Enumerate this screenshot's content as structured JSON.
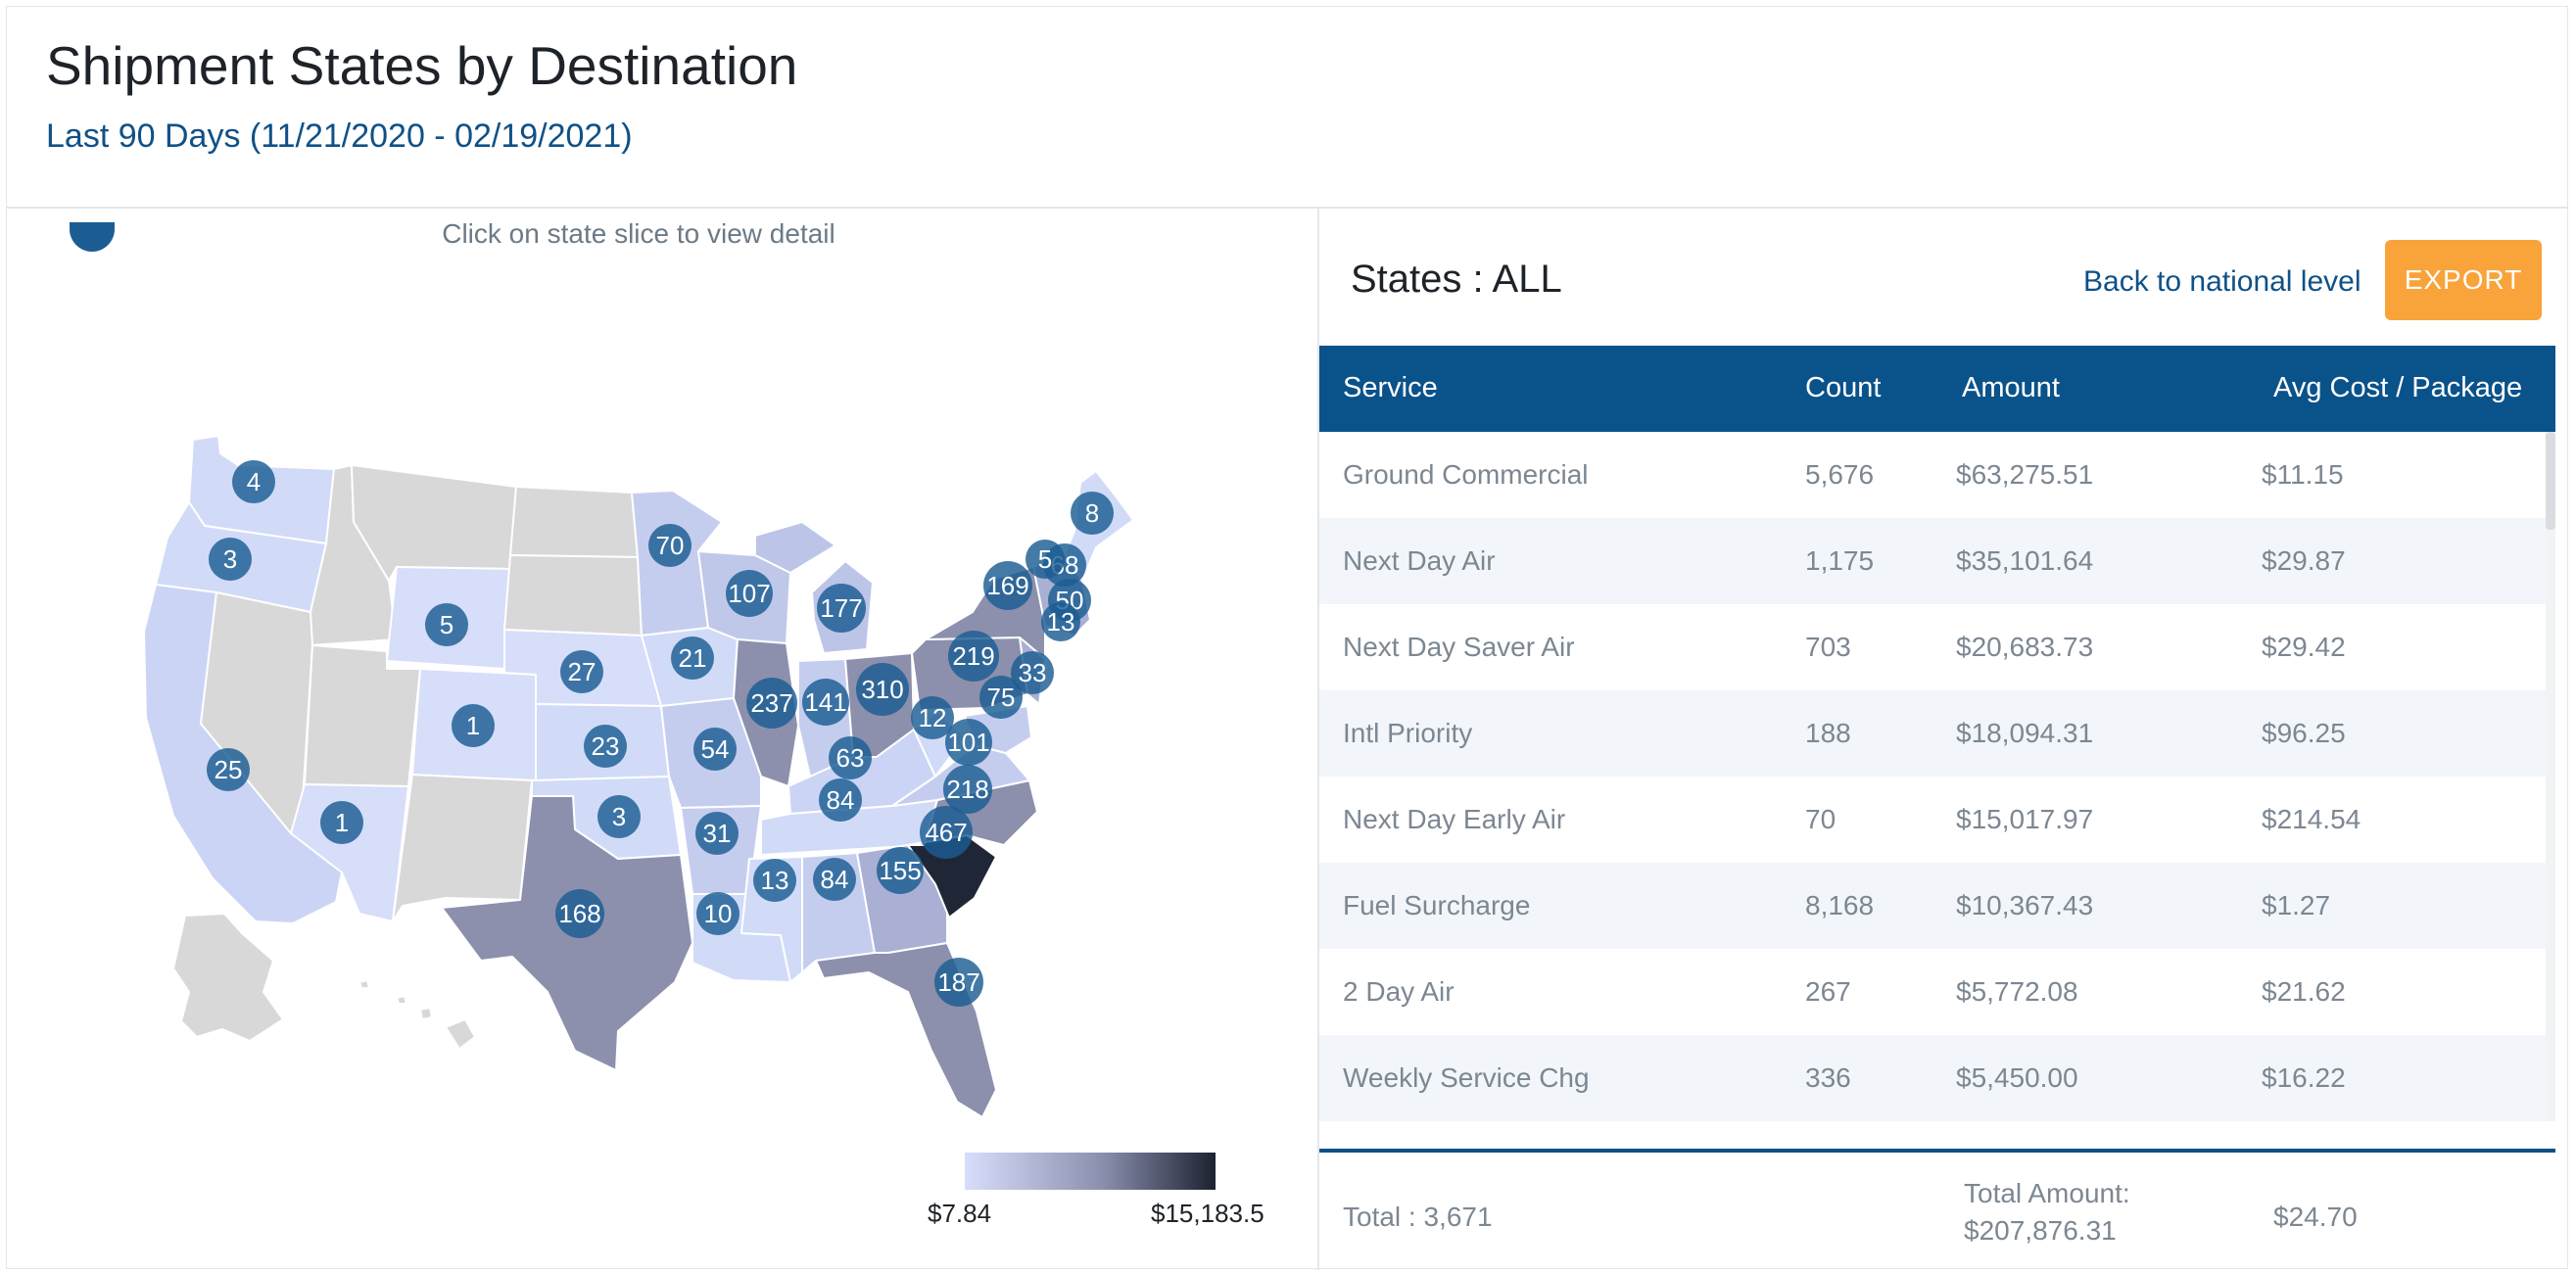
{
  "header": {
    "title": "Shipment States by Destination",
    "subtitle": "Last 90 Days (11/21/2020 - 02/19/2021)"
  },
  "map": {
    "hint": "Click on state slice to view detail",
    "legend": {
      "min": "$7.84",
      "max": "$15,183.5",
      "low_color": "#d7defb",
      "high_color": "#1c2230"
    },
    "bubbles": [
      "4",
      "3",
      "25",
      "1",
      "5",
      "1",
      "27",
      "23",
      "3",
      "168",
      "70",
      "21",
      "54",
      "31",
      "10",
      "107",
      "237",
      "141",
      "13",
      "84",
      "177",
      "310",
      "63",
      "84",
      "155",
      "187",
      "12",
      "101",
      "218",
      "467",
      "219",
      "75",
      "33",
      "169",
      "68",
      "5",
      "50",
      "13",
      "8"
    ]
  },
  "panel": {
    "state_title": "States : ALL",
    "back_link": "Back to national level",
    "export_label": "EXPORT"
  },
  "table": {
    "headers": [
      "Service",
      "Count",
      "Amount",
      "Avg Cost / Package"
    ],
    "rows": [
      [
        "Ground Commercial",
        "5,676",
        "$63,275.51",
        "$11.15"
      ],
      [
        "Next Day Air",
        "1,175",
        "$35,101.64",
        "$29.87"
      ],
      [
        "Next Day Saver Air",
        "703",
        "$20,683.73",
        "$29.42"
      ],
      [
        "Intl Priority",
        "188",
        "$18,094.31",
        "$96.25"
      ],
      [
        "Next Day Early Air",
        "70",
        "$15,017.97",
        "$214.54"
      ],
      [
        "Fuel Surcharge",
        "8,168",
        "$10,367.43",
        "$1.27"
      ],
      [
        "2 Day Air",
        "267",
        "$5,772.08",
        "$21.62"
      ],
      [
        "Weekly Service Chg",
        "336",
        "$5,450.00",
        "$16.22"
      ]
    ],
    "footer": {
      "total": "Total : 3,671",
      "amount_label": "Total Amount:",
      "amount_value": "$207,876.31",
      "avg": "$24.70"
    }
  },
  "colors": {
    "accent": "#0a528a",
    "export": "#f9a33b",
    "bubble": "#1b5d93"
  }
}
